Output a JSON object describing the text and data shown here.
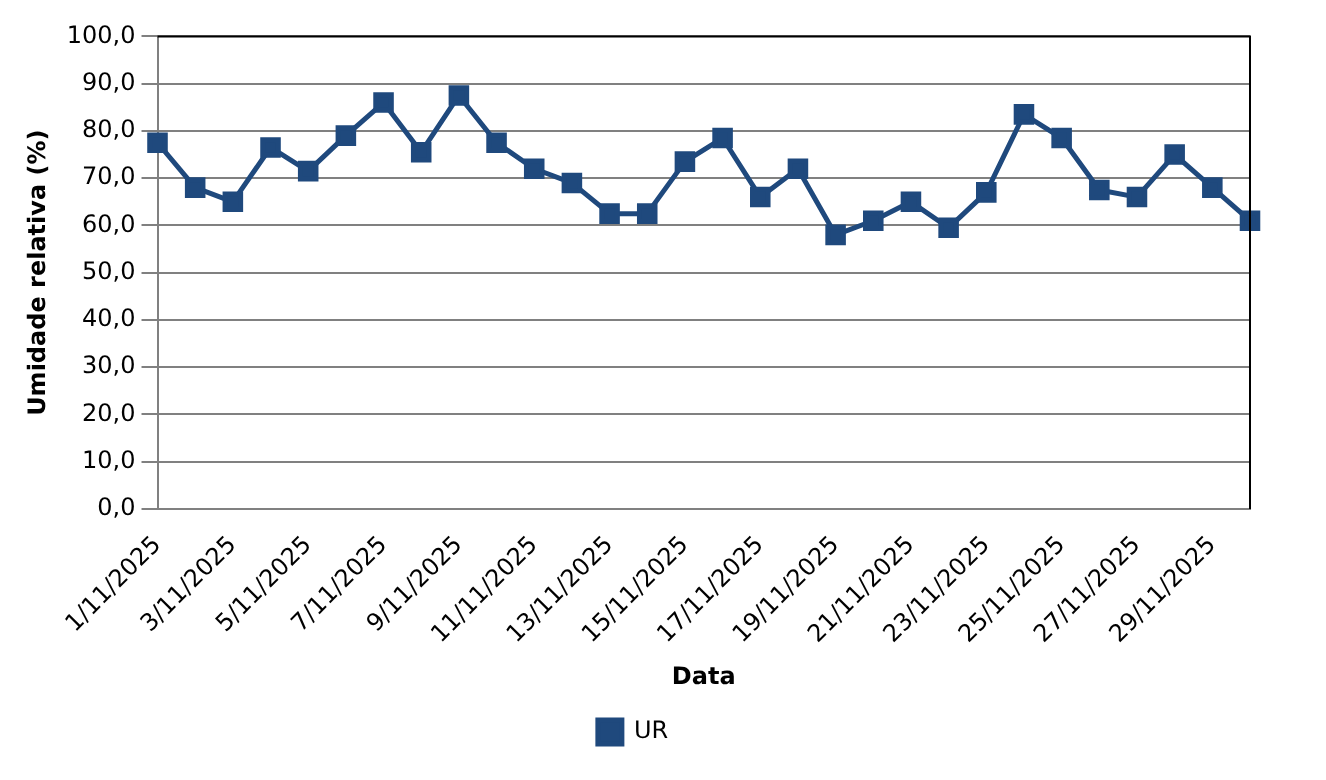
{
  "chart_data": {
    "type": "line",
    "xlabel": "Data",
    "ylabel": "Umidade relativa (%)",
    "categories": [
      "1/11/2025",
      null,
      "3/11/2025",
      null,
      "5/11/2025",
      null,
      "7/11/2025",
      null,
      "9/11/2025",
      null,
      "11/11/2025",
      null,
      "13/11/2025",
      null,
      "15/11/2025",
      null,
      "17/11/2025",
      null,
      "19/11/2025",
      null,
      "21/11/2025",
      null,
      "23/11/2025",
      null,
      "25/11/2025",
      null,
      "27/11/2025",
      null,
      "29/11/2025",
      null
    ],
    "series": [
      {
        "name": "UR",
        "color": "#1f497d",
        "values": [
          77.5,
          68,
          65,
          76.5,
          71.5,
          79,
          86,
          75.5,
          87.5,
          77.5,
          72,
          69,
          62.5,
          62.5,
          73.5,
          78.5,
          66,
          72,
          58,
          61,
          65,
          59.5,
          67,
          83.5,
          78.5,
          67.5,
          66,
          75,
          68,
          61
        ]
      }
    ],
    "ylim": [
      0,
      100
    ],
    "yticks": [
      {
        "value": 0,
        "label": "0,0"
      },
      {
        "value": 10,
        "label": "10,0"
      },
      {
        "value": 20,
        "label": "20,0"
      },
      {
        "value": 30,
        "label": "30,0"
      },
      {
        "value": 40,
        "label": "40,0"
      },
      {
        "value": 50,
        "label": "50,0"
      },
      {
        "value": 60,
        "label": "60,0"
      },
      {
        "value": 70,
        "label": "70,0"
      },
      {
        "value": 80,
        "label": "80,0"
      },
      {
        "value": 90,
        "label": "90,0"
      },
      {
        "value": 100,
        "label": "100,0"
      }
    ],
    "grid": "y",
    "legend": "bottom",
    "marker": "square",
    "line_style": "solid"
  }
}
